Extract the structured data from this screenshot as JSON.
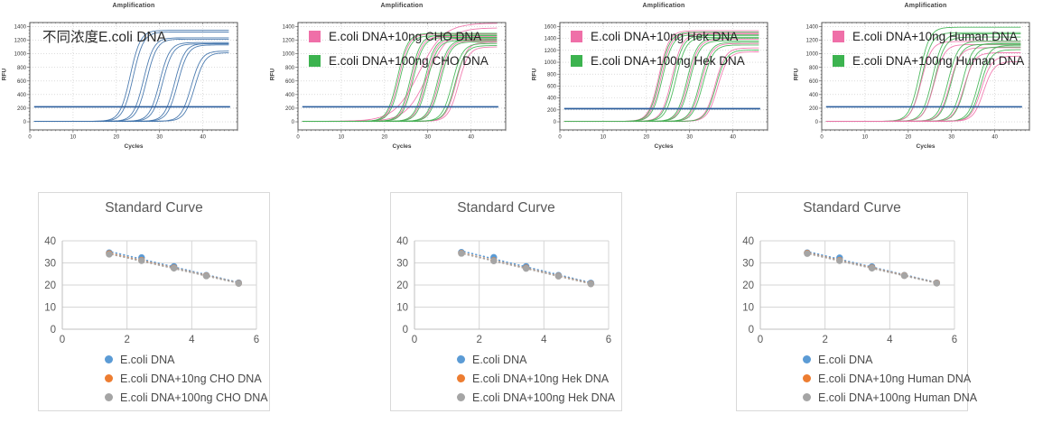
{
  "page": {
    "background": "#ffffff"
  },
  "colors": {
    "amp_curve_blue": "#3b6fa9",
    "amp_pink": "#ef6fa8",
    "amp_green": "#3cb34f",
    "amp_threshold_blue": "#2e5f9e",
    "std_blue": "#5B9BD5",
    "std_orange": "#ED7D31",
    "std_gray": "#A5A5A5"
  },
  "chart_data": [
    {
      "type": "line",
      "subtype": "qpcr-amplification",
      "title": "Amplification",
      "xlabel": "Cycles",
      "ylabel": "RFU",
      "annotation": "不同浓度E.coli DNA",
      "xlim": [
        0,
        48
      ],
      "ylim_display": [
        0,
        1400
      ],
      "xticks": [
        0,
        10,
        20,
        30,
        40
      ],
      "yticks": [
        0,
        200,
        400,
        600,
        800,
        1000,
        1200,
        1400
      ],
      "threshold_rfu": 220,
      "legend": [],
      "curves": [
        {
          "color": "#3b6fa9",
          "midpoint_cycle": 23.2,
          "plateau_rfu": 1345
        },
        {
          "color": "#3b6fa9",
          "midpoint_cycle": 23.9,
          "plateau_rfu": 1320
        },
        {
          "color": "#3b6fa9",
          "midpoint_cycle": 26.3,
          "plateau_rfu": 1235
        },
        {
          "color": "#3b6fa9",
          "midpoint_cycle": 27.0,
          "plateau_rfu": 1215
        },
        {
          "color": "#3b6fa9",
          "midpoint_cycle": 30.0,
          "plateau_rfu": 1165
        },
        {
          "color": "#3b6fa9",
          "midpoint_cycle": 30.7,
          "plateau_rfu": 1145
        },
        {
          "color": "#3b6fa9",
          "midpoint_cycle": 33.5,
          "plateau_rfu": 1150
        },
        {
          "color": "#3b6fa9",
          "midpoint_cycle": 34.2,
          "plateau_rfu": 1130
        },
        {
          "color": "#3b6fa9",
          "midpoint_cycle": 37.3,
          "plateau_rfu": 1040
        },
        {
          "color": "#3b6fa9",
          "midpoint_cycle": 38.1,
          "plateau_rfu": 1015
        }
      ]
    },
    {
      "type": "line",
      "subtype": "qpcr-amplification",
      "title": "Amplification",
      "xlabel": "Cycles",
      "ylabel": "RFU",
      "annotation": "",
      "xlim": [
        0,
        48
      ],
      "ylim_display": [
        0,
        1400
      ],
      "xticks": [
        0,
        10,
        20,
        30,
        40
      ],
      "yticks": [
        0,
        200,
        400,
        600,
        800,
        1000,
        1200,
        1400
      ],
      "threshold_rfu": 220,
      "legend": [
        {
          "label": "E.coli DNA+10ng CHO DNA",
          "color": "#ef6fa8"
        },
        {
          "label": "E.coli DNA+100ng CHO DNA",
          "color": "#3cb34f"
        }
      ],
      "curves": [
        {
          "color": "#ef6fa8",
          "midpoint_cycle": 28.0,
          "plateau_rfu": 1450,
          "k": 0.35
        },
        {
          "color": "#ef6fa8",
          "midpoint_cycle": 30.0,
          "plateau_rfu": 1380,
          "k": 0.4
        },
        {
          "color": "#ef6fa8",
          "midpoint_cycle": 23.3,
          "plateau_rfu": 1290
        },
        {
          "color": "#3cb34f",
          "midpoint_cycle": 23.0,
          "plateau_rfu": 1300
        },
        {
          "color": "#3cb34f",
          "midpoint_cycle": 23.6,
          "plateau_rfu": 1265
        },
        {
          "color": "#ef6fa8",
          "midpoint_cycle": 26.3,
          "plateau_rfu": 1255
        },
        {
          "color": "#3cb34f",
          "midpoint_cycle": 26.0,
          "plateau_rfu": 1275
        },
        {
          "color": "#3cb34f",
          "midpoint_cycle": 26.6,
          "plateau_rfu": 1240
        },
        {
          "color": "#ef6fa8",
          "midpoint_cycle": 29.6,
          "plateau_rfu": 1215
        },
        {
          "color": "#3cb34f",
          "midpoint_cycle": 29.3,
          "plateau_rfu": 1230
        },
        {
          "color": "#3cb34f",
          "midpoint_cycle": 29.9,
          "plateau_rfu": 1195
        },
        {
          "color": "#ef6fa8",
          "midpoint_cycle": 32.6,
          "plateau_rfu": 1190
        },
        {
          "color": "#3cb34f",
          "midpoint_cycle": 32.3,
          "plateau_rfu": 1205
        },
        {
          "color": "#3cb34f",
          "midpoint_cycle": 32.9,
          "plateau_rfu": 1175
        },
        {
          "color": "#ef6fa8",
          "midpoint_cycle": 36.6,
          "plateau_rfu": 1170
        },
        {
          "color": "#ef6fa8",
          "midpoint_cycle": 37.1,
          "plateau_rfu": 1100
        },
        {
          "color": "#3cb34f",
          "midpoint_cycle": 35.7,
          "plateau_rfu": 1150
        },
        {
          "color": "#3cb34f",
          "midpoint_cycle": 36.3,
          "plateau_rfu": 1120
        }
      ]
    },
    {
      "type": "line",
      "subtype": "qpcr-amplification",
      "title": "Amplification",
      "xlabel": "Cycles",
      "ylabel": "RFU",
      "annotation": "",
      "xlim": [
        0,
        48
      ],
      "ylim_display": [
        0,
        1600
      ],
      "xticks": [
        0,
        10,
        20,
        30,
        40
      ],
      "yticks": [
        0,
        200,
        400,
        600,
        800,
        1000,
        1200,
        1400,
        1600
      ],
      "threshold_rfu": 220,
      "legend": [
        {
          "label": "E.coli DNA+10ng Hek DNA",
          "color": "#ef6fa8"
        },
        {
          "label": "E.coli DNA+100ng Hek DNA",
          "color": "#3cb34f"
        }
      ],
      "curves": [
        {
          "color": "#ef6fa8",
          "midpoint_cycle": 22.9,
          "plateau_rfu": 1530
        },
        {
          "color": "#ef6fa8",
          "midpoint_cycle": 23.4,
          "plateau_rfu": 1490
        },
        {
          "color": "#3cb34f",
          "midpoint_cycle": 23.1,
          "plateau_rfu": 1505
        },
        {
          "color": "#3cb34f",
          "midpoint_cycle": 23.7,
          "plateau_rfu": 1465
        },
        {
          "color": "#ef6fa8",
          "midpoint_cycle": 25.9,
          "plateau_rfu": 1475
        },
        {
          "color": "#3cb34f",
          "midpoint_cycle": 26.2,
          "plateau_rfu": 1450
        },
        {
          "color": "#3cb34f",
          "midpoint_cycle": 26.8,
          "plateau_rfu": 1420
        },
        {
          "color": "#ef6fa8",
          "midpoint_cycle": 29.7,
          "plateau_rfu": 1385
        },
        {
          "color": "#3cb34f",
          "midpoint_cycle": 29.4,
          "plateau_rfu": 1405
        },
        {
          "color": "#3cb34f",
          "midpoint_cycle": 30.0,
          "plateau_rfu": 1360
        },
        {
          "color": "#ef6fa8",
          "midpoint_cycle": 32.7,
          "plateau_rfu": 1315
        },
        {
          "color": "#3cb34f",
          "midpoint_cycle": 32.4,
          "plateau_rfu": 1335
        },
        {
          "color": "#3cb34f",
          "midpoint_cycle": 33.1,
          "plateau_rfu": 1290
        },
        {
          "color": "#ef6fa8",
          "midpoint_cycle": 35.9,
          "plateau_rfu": 1240
        },
        {
          "color": "#ef6fa8",
          "midpoint_cycle": 36.5,
          "plateau_rfu": 1175
        },
        {
          "color": "#3cb34f",
          "midpoint_cycle": 36.1,
          "plateau_rfu": 1205
        }
      ]
    },
    {
      "type": "line",
      "subtype": "qpcr-amplification",
      "title": "Amplification",
      "xlabel": "Cycles",
      "ylabel": "RFU",
      "annotation": "",
      "xlim": [
        0,
        48
      ],
      "ylim_display": [
        0,
        1400
      ],
      "xticks": [
        0,
        10,
        20,
        30,
        40
      ],
      "yticks": [
        0,
        200,
        400,
        600,
        800,
        1000,
        1200,
        1400
      ],
      "threshold_rfu": 220,
      "legend": [
        {
          "label": "E.coli DNA+10ng Human DNA",
          "color": "#ef6fa8"
        },
        {
          "label": "E.coli DNA+100ng Human DNA",
          "color": "#3cb34f"
        }
      ],
      "curves": [
        {
          "color": "#3cb34f",
          "midpoint_cycle": 22.6,
          "plateau_rfu": 1390
        },
        {
          "color": "#3cb34f",
          "midpoint_cycle": 23.1,
          "plateau_rfu": 1310
        },
        {
          "color": "#ef6fa8",
          "midpoint_cycle": 23.0,
          "plateau_rfu": 1180
        },
        {
          "color": "#3cb34f",
          "midpoint_cycle": 25.6,
          "plateau_rfu": 1295
        },
        {
          "color": "#3cb34f",
          "midpoint_cycle": 26.1,
          "plateau_rfu": 1245
        },
        {
          "color": "#ef6fa8",
          "midpoint_cycle": 26.0,
          "plateau_rfu": 1135
        },
        {
          "color": "#3cb34f",
          "midpoint_cycle": 29.2,
          "plateau_rfu": 1185
        },
        {
          "color": "#3cb34f",
          "midpoint_cycle": 29.9,
          "plateau_rfu": 1140
        },
        {
          "color": "#ef6fa8",
          "midpoint_cycle": 29.6,
          "plateau_rfu": 1090
        },
        {
          "color": "#3cb34f",
          "midpoint_cycle": 32.5,
          "plateau_rfu": 1155
        },
        {
          "color": "#3cb34f",
          "midpoint_cycle": 33.2,
          "plateau_rfu": 1100
        },
        {
          "color": "#ef6fa8",
          "midpoint_cycle": 32.9,
          "plateau_rfu": 1015
        },
        {
          "color": "#3cb34f",
          "midpoint_cycle": 36.2,
          "plateau_rfu": 1125
        },
        {
          "color": "#3cb34f",
          "midpoint_cycle": 36.7,
          "plateau_rfu": 1060
        },
        {
          "color": "#ef6fa8",
          "midpoint_cycle": 36.9,
          "plateau_rfu": 965
        },
        {
          "color": "#ef6fa8",
          "midpoint_cycle": 37.4,
          "plateau_rfu": 885
        }
      ]
    },
    {
      "type": "scatter",
      "title": "Standard Curve",
      "xlim": [
        0,
        6
      ],
      "ylim": [
        0,
        40
      ],
      "xticks": [
        0,
        2,
        4,
        6
      ],
      "yticks": [
        0,
        10,
        20,
        30,
        40
      ],
      "trendline": "linear-dotted",
      "legend_position": "bottom",
      "series": [
        {
          "name": "E.coli DNA",
          "color": "#5B9BD5",
          "points": [
            [
              1.45,
              34.6
            ],
            [
              2.45,
              32.4
            ],
            [
              3.45,
              28.4
            ],
            [
              4.45,
              24.4
            ],
            [
              5.45,
              21.0
            ]
          ]
        },
        {
          "name": "E.coli DNA+10ng CHO DNA",
          "color": "#ED7D31",
          "points": [
            [
              1.45,
              34.2
            ],
            [
              2.45,
              31.2
            ],
            [
              3.45,
              27.8
            ],
            [
              4.45,
              24.2
            ],
            [
              5.45,
              20.8
            ]
          ]
        },
        {
          "name": "E.coli DNA+100ng CHO DNA",
          "color": "#A5A5A5",
          "points": [
            [
              1.45,
              33.9
            ],
            [
              2.45,
              31.0
            ],
            [
              3.45,
              27.6
            ],
            [
              4.45,
              24.1
            ],
            [
              5.45,
              20.7
            ]
          ]
        }
      ]
    },
    {
      "type": "scatter",
      "title": "Standard Curve",
      "xlim": [
        0,
        6
      ],
      "ylim": [
        0,
        40
      ],
      "xticks": [
        0,
        2,
        4,
        6
      ],
      "yticks": [
        0,
        10,
        20,
        30,
        40
      ],
      "trendline": "linear-dotted",
      "legend_position": "bottom",
      "series": [
        {
          "name": "E.coli DNA",
          "color": "#5B9BD5",
          "points": [
            [
              1.45,
              34.8
            ],
            [
              2.45,
              32.5
            ],
            [
              3.45,
              28.4
            ],
            [
              4.45,
              24.4
            ],
            [
              5.45,
              20.9
            ]
          ]
        },
        {
          "name": "E.coli DNA+10ng Hek DNA",
          "color": "#ED7D31",
          "points": [
            [
              1.45,
              34.4
            ],
            [
              2.45,
              31.1
            ],
            [
              3.45,
              27.7
            ],
            [
              4.45,
              24.1
            ],
            [
              5.45,
              20.6
            ]
          ]
        },
        {
          "name": "E.coli DNA+100ng Hek DNA",
          "color": "#A5A5A5",
          "points": [
            [
              1.45,
              34.3
            ],
            [
              2.45,
              30.9
            ],
            [
              3.45,
              27.5
            ],
            [
              4.45,
              24.0
            ],
            [
              5.45,
              20.5
            ]
          ]
        }
      ]
    },
    {
      "type": "scatter",
      "title": "Standard Curve",
      "xlim": [
        0,
        6
      ],
      "ylim": [
        0,
        40
      ],
      "xticks": [
        0,
        2,
        4,
        6
      ],
      "yticks": [
        0,
        10,
        20,
        30,
        40
      ],
      "trendline": "linear-dotted",
      "legend_position": "bottom",
      "series": [
        {
          "name": "E.coli DNA",
          "color": "#5B9BD5",
          "points": [
            [
              1.45,
              34.6
            ],
            [
              2.45,
              32.3
            ],
            [
              3.45,
              28.3
            ],
            [
              4.45,
              24.4
            ],
            [
              5.45,
              21.0
            ]
          ]
        },
        {
          "name": "E.coli DNA+10ng Human DNA",
          "color": "#ED7D31",
          "points": [
            [
              1.45,
              34.4
            ],
            [
              2.45,
              31.2
            ],
            [
              3.45,
              27.8
            ],
            [
              4.45,
              24.3
            ],
            [
              5.45,
              20.9
            ]
          ]
        },
        {
          "name": "E.coli DNA+100ng Human DNA",
          "color": "#A5A5A5",
          "points": [
            [
              1.45,
              34.2
            ],
            [
              2.45,
              31.0
            ],
            [
              3.45,
              27.6
            ],
            [
              4.45,
              24.2
            ],
            [
              5.45,
              20.8
            ]
          ]
        }
      ]
    }
  ]
}
